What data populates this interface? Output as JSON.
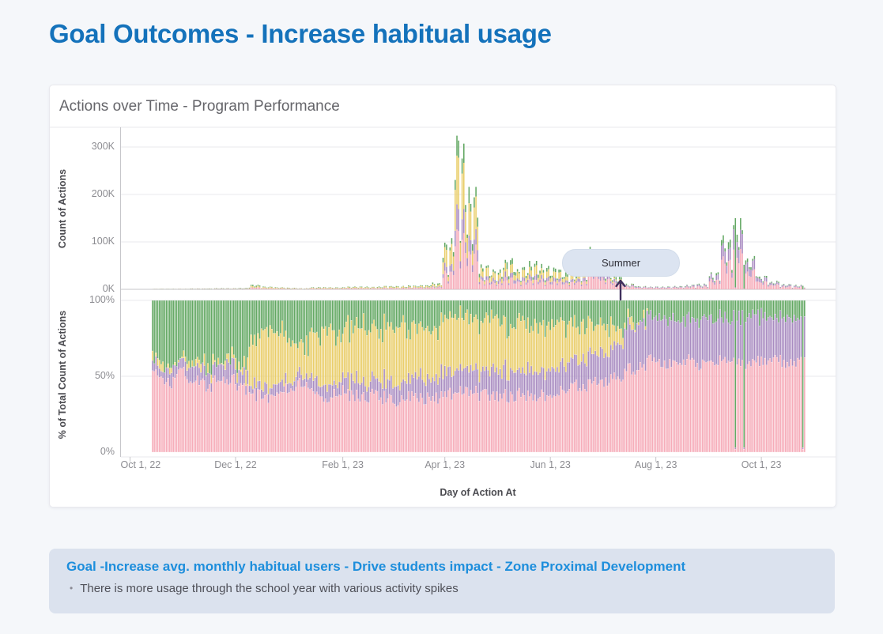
{
  "page": {
    "title": "Goal Outcomes - Increase habitual usage"
  },
  "chart_card": {
    "title": "Actions over Time - Program Performance"
  },
  "annotation": {
    "label": "Summer"
  },
  "insight_card": {
    "title": "Goal -Increase avg. monthly habitual users - Drive students impact - Zone Proximal Development",
    "bullet_marker": "•",
    "bullet": "There is more usage through the school year with various activity spikes"
  },
  "colors": {
    "page_background": "#f5f7fa",
    "card_background": "#ffffff",
    "insight_background": "#dbe2ee",
    "title_blue": "#1472bb",
    "insight_blue": "#1d8edc",
    "annotation_pill": "#dce4f1",
    "annotation_arrow": "#41305e",
    "gridline": "#e9e9ec",
    "axis_line": "#c6c6ca",
    "series": {
      "pink": "#f6acb9",
      "purple": "#a98cc1",
      "yellow": "#e9cd68",
      "green": "#63a863"
    }
  },
  "chart_data": [
    {
      "type": "bar",
      "stacked": true,
      "title": "Actions over Time - Program Performance",
      "ylabel": "Count of Actions",
      "xlabel": "Day of Action At",
      "ylim": [
        0,
        340000
      ],
      "grid": true,
      "legend": "none",
      "y_ticks": [
        {
          "label": "0K",
          "value": 0
        },
        {
          "label": "100K",
          "value": 100
        },
        {
          "label": "200K",
          "value": 200
        },
        {
          "label": "300K",
          "value": 300
        }
      ],
      "x_ticks": [
        {
          "label": "Oct 1, 22",
          "day": 0
        },
        {
          "label": "Dec 1, 22",
          "day": 61
        },
        {
          "label": "Feb 1, 23",
          "day": 123
        },
        {
          "label": "Apr 1, 23",
          "day": 182
        },
        {
          "label": "Jun 1, 23",
          "day": 243
        },
        {
          "label": "Aug 1, 23",
          "day": 304
        },
        {
          "label": "Oct 1, 23",
          "day": 365
        }
      ],
      "note": "Daily stacked bars from ~Oct 13, 2022 to ~Oct 26, 2023. Values below are typical daily bar heights (thousands of actions) per week; peak single day ~320K around Mar 30, secondary peaks ~75K mid-June and ~125K early September.",
      "weeks_start": "2022-10-10",
      "week_interval_days": 7,
      "typical_daily_total_k": [
        1,
        1,
        1,
        1.5,
        1.5,
        2,
        2,
        2.5,
        8,
        5,
        4,
        3,
        2,
        4,
        4,
        4,
        5,
        5,
        5,
        6,
        6,
        7,
        8,
        12,
        90,
        270,
        180,
        45,
        35,
        55,
        40,
        50,
        45,
        40,
        30,
        35,
        75,
        45,
        25,
        10,
        6,
        5,
        5,
        6,
        8,
        10,
        30,
        95,
        125,
        60,
        25,
        15,
        10,
        8
      ],
      "series_split": "see chart_data[1].series percentages (same four series, same stacking order pink,purple,yellow,green)"
    },
    {
      "type": "bar",
      "stacked": true,
      "percent": true,
      "ylabel": "% of Total Count of Actions",
      "xlabel": "Day of Action At",
      "ylim": [
        0,
        100
      ],
      "grid": true,
      "legend": "none",
      "y_ticks": [
        {
          "label": "0%",
          "value": 0
        },
        {
          "label": "50%",
          "value": 50
        },
        {
          "label": "100%",
          "value": 100
        }
      ],
      "weeks_start": "2022-10-10",
      "week_interval_days": 7,
      "series": [
        {
          "name": "pink",
          "color": "#f6acb9",
          "values": [
            50,
            45,
            52,
            48,
            44,
            50,
            47,
            42,
            38,
            36,
            40,
            42,
            45,
            38,
            36,
            40,
            37,
            35,
            38,
            36,
            34,
            37,
            35,
            36,
            38,
            42,
            40,
            38,
            36,
            37,
            38,
            36,
            38,
            40,
            42,
            44,
            45,
            47,
            50,
            55,
            58,
            60,
            57,
            59,
            60,
            58,
            60,
            62,
            60,
            58,
            60,
            62,
            58,
            60
          ]
        },
        {
          "name": "purple",
          "color": "#a98cc1",
          "values": [
            6,
            8,
            7,
            10,
            8,
            9,
            12,
            8,
            6,
            7,
            6,
            5,
            6,
            8,
            9,
            8,
            10,
            9,
            10,
            12,
            11,
            13,
            14,
            15,
            14,
            15,
            16,
            15,
            16,
            17,
            16,
            18,
            17,
            18,
            17,
            18,
            20,
            19,
            22,
            28,
            30,
            28,
            30,
            29,
            27,
            30,
            28,
            27,
            30,
            31,
            29,
            27,
            30,
            28
          ]
        },
        {
          "name": "yellow",
          "color": "#e9cd68",
          "values": [
            2,
            2,
            1,
            2,
            3,
            2,
            3,
            6,
            30,
            38,
            35,
            25,
            20,
            32,
            38,
            30,
            35,
            40,
            32,
            35,
            38,
            33,
            35,
            33,
            36,
            35,
            34,
            32,
            33,
            31,
            32,
            30,
            30,
            28,
            25,
            22,
            20,
            18,
            12,
            4,
            1,
            0,
            0,
            0,
            0,
            0,
            0,
            0,
            0,
            0,
            0,
            0,
            0,
            0
          ]
        },
        {
          "name": "green",
          "color": "#63a863",
          "values": [
            42,
            45,
            40,
            40,
            45,
            39,
            38,
            44,
            26,
            19,
            19,
            28,
            29,
            22,
            17,
            22,
            18,
            16,
            20,
            17,
            17,
            17,
            16,
            16,
            12,
            8,
            10,
            15,
            15,
            15,
            14,
            16,
            15,
            14,
            16,
            16,
            15,
            16,
            16,
            13,
            11,
            12,
            13,
            12,
            13,
            12,
            12,
            11,
            10,
            11,
            11,
            11,
            12,
            12
          ]
        }
      ]
    }
  ]
}
